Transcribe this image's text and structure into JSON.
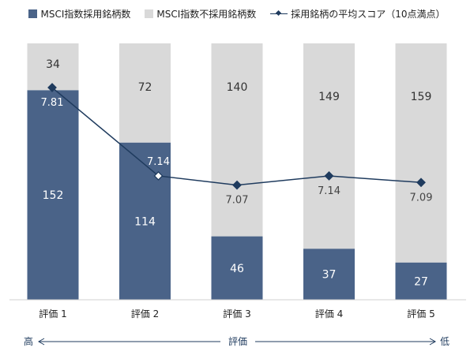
{
  "chart_data": {
    "type": "bar",
    "stacked": true,
    "categories": [
      "評価 1",
      "評価 2",
      "評価 3",
      "評価 4",
      "評価 5"
    ],
    "series": [
      {
        "name": "MSCI指数採用銘柄数",
        "type": "bar",
        "color": "#4a6388",
        "values": [
          152,
          114,
          46,
          37,
          27
        ]
      },
      {
        "name": "MSCI指数不採用銘柄数",
        "type": "bar",
        "color": "#d9d9d9",
        "values": [
          34,
          72,
          140,
          149,
          159
        ]
      },
      {
        "name": "採用銘柄の平均スコア（10点満点）",
        "type": "line",
        "color": "#1f3b5e",
        "values": [
          7.81,
          7.14,
          7.07,
          7.14,
          7.09
        ]
      }
    ],
    "line_labels": [
      "7.81",
      "7.14",
      "7.07",
      "7.14",
      "7.09"
    ],
    "ylim": [
      0,
      186
    ],
    "legend": "top",
    "grid": false
  },
  "axis_note": {
    "left": "高",
    "center": "評価",
    "right": "低"
  }
}
